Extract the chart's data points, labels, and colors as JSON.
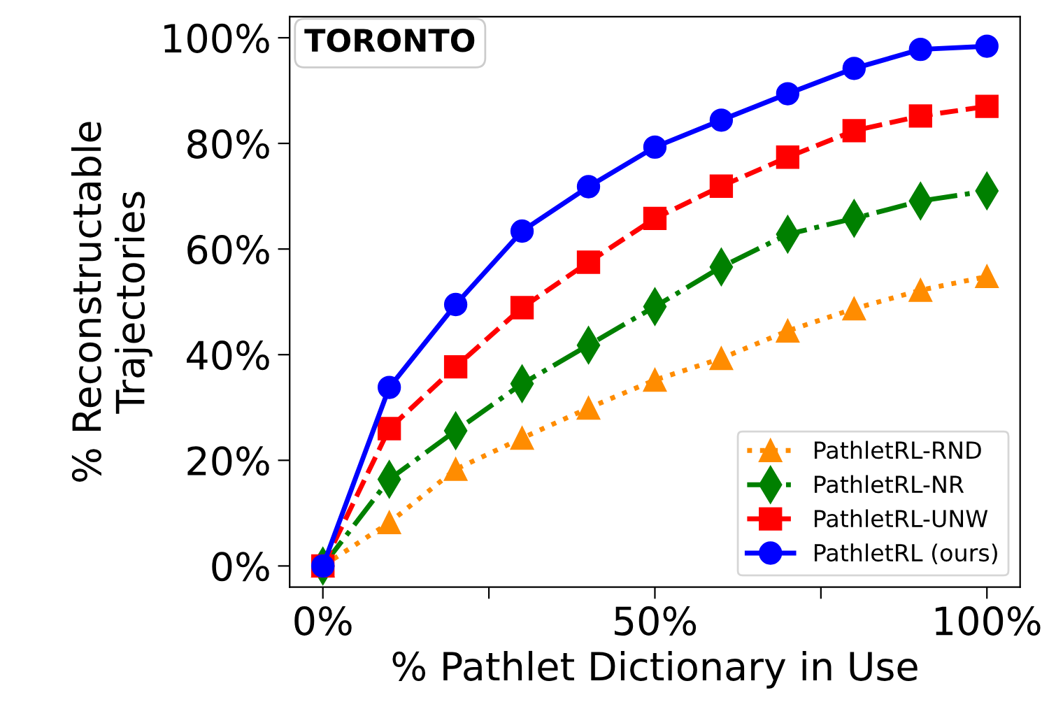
{
  "chart_data": {
    "type": "line",
    "xlabel": "% Pathlet Dictionary in Use",
    "ylabel": "% Reconstructable\nTrajectories",
    "annotations": [
      "TORONTO"
    ],
    "x": [
      0,
      10,
      20,
      30,
      40,
      50,
      60,
      70,
      80,
      90,
      100
    ],
    "series": [
      {
        "name": "PathletRL-RND",
        "color": "#ff8c00",
        "marker": "triangle",
        "line_style": "dotted",
        "values": [
          0,
          8.2,
          18.3,
          24.2,
          29.9,
          35.2,
          39.3,
          44.5,
          48.7,
          52.2,
          54.8
        ]
      },
      {
        "name": "PathletRL-NR",
        "color": "#008000",
        "marker": "diamond",
        "line_style": "dashdot",
        "values": [
          0,
          16.4,
          25.6,
          34.5,
          41.8,
          49.1,
          56.6,
          62.8,
          65.8,
          69.1,
          71.0
        ]
      },
      {
        "name": "PathletRL-UNW",
        "color": "#ff0000",
        "marker": "square",
        "line_style": "dashed",
        "values": [
          0,
          26.0,
          37.7,
          48.9,
          57.5,
          65.8,
          71.9,
          77.4,
          82.4,
          85.2,
          87.0
        ]
      },
      {
        "name": "PathletRL (ours)",
        "color": "#0000ff",
        "marker": "circle",
        "line_style": "solid",
        "values": [
          0,
          33.8,
          49.5,
          63.4,
          71.8,
          79.3,
          84.4,
          89.4,
          94.2,
          97.8,
          98.4
        ]
      }
    ],
    "xlim": [
      -5,
      105
    ],
    "xticks": [
      {
        "value": 0,
        "label": "0%"
      },
      {
        "value": 25,
        "label": null
      },
      {
        "value": 50,
        "label": "50%"
      },
      {
        "value": 75,
        "label": null
      },
      {
        "value": 100,
        "label": "100%"
      }
    ],
    "ylim": [
      -4,
      104
    ],
    "yticks": [
      {
        "value": 0,
        "label": "0%"
      },
      {
        "value": 20,
        "label": "20%"
      },
      {
        "value": 40,
        "label": "40%"
      },
      {
        "value": 60,
        "label": "60%"
      },
      {
        "value": 80,
        "label": "80%"
      },
      {
        "value": 100,
        "label": "100%"
      }
    ],
    "legend": "bottom right",
    "grid": false
  }
}
